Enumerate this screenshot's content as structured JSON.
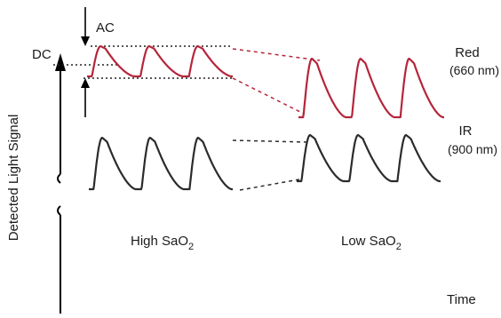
{
  "labels": {
    "ac": "AC",
    "dc": "DC",
    "red": "Red",
    "red_wavelength": "(660 nm)",
    "ir": "IR",
    "ir_wavelength": "(900 nm)",
    "y_axis": "Detected Light Signal",
    "x_axis": "Time",
    "high_prefix": "High SaO",
    "low_prefix": "Low SaO",
    "subscript": "2"
  },
  "colors": {
    "red_trace": "#b5253a",
    "ir_trace": "#2b2b2b",
    "axis": "#000000",
    "dotted_guide": "#222222"
  },
  "traces": {
    "high_sao2": {
      "red_ac_relative": "small",
      "ir_ac_relative": "large",
      "red_dc_relative": "high"
    },
    "low_sao2": {
      "red_ac_relative": "large",
      "ir_ac_relative": "large",
      "red_dc_relative": "lower"
    }
  }
}
